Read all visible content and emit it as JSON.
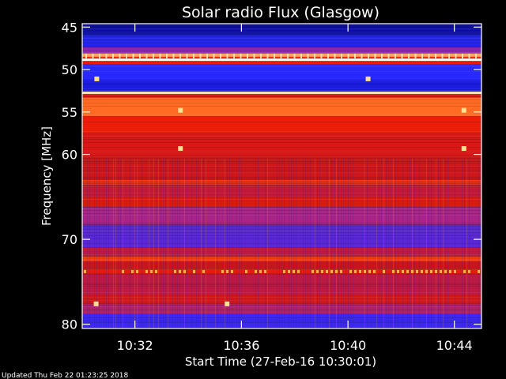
{
  "chart_data": {
    "type": "heatmap",
    "title": "Solar radio Flux (Glasgow)",
    "xlabel": "Start Time (27-Feb-16 10:30:01)",
    "ylabel": "Frequency [MHz]",
    "footer": "Updated Thu Feb 22 01:23:25 2018",
    "xlim": [
      10.5003,
      10.7503
    ],
    "ylim": [
      80.5,
      44.6
    ],
    "xticks": [
      {
        "label": "10:32",
        "value": 10.5333
      },
      {
        "label": "10:36",
        "value": 10.6
      },
      {
        "label": "10:40",
        "value": 10.6667
      },
      {
        "label": "10:44",
        "value": 10.7333
      }
    ],
    "yticks": [
      {
        "label": "45",
        "value": 45
      },
      {
        "label": "50",
        "value": 50
      },
      {
        "label": "55",
        "value": 55
      },
      {
        "label": "60",
        "value": 60
      },
      {
        "label": "70",
        "value": 70
      },
      {
        "label": "80",
        "value": 80
      }
    ],
    "frequency_bands": [
      {
        "from": 44.6,
        "to": 45.1,
        "level": 0.08
      },
      {
        "from": 45.1,
        "to": 46.0,
        "level": 0.1
      },
      {
        "from": 46.0,
        "to": 47.4,
        "level": 0.25
      },
      {
        "from": 47.4,
        "to": 48.1,
        "level": 0.38
      },
      {
        "from": 48.1,
        "to": 48.5,
        "level": 0.85
      },
      {
        "from": 48.5,
        "to": 48.7,
        "level": 0.65
      },
      {
        "from": 48.7,
        "to": 49.0,
        "level": 1.0
      },
      {
        "from": 49.0,
        "to": 49.4,
        "level": 0.6
      },
      {
        "from": 49.4,
        "to": 51.2,
        "level": 0.28
      },
      {
        "from": 51.2,
        "to": 52.6,
        "level": 0.18
      },
      {
        "from": 52.6,
        "to": 52.9,
        "level": 0.95
      },
      {
        "from": 52.9,
        "to": 53.3,
        "level": 0.55
      },
      {
        "from": 53.3,
        "to": 55.5,
        "level": 0.78
      },
      {
        "from": 55.5,
        "to": 57.5,
        "level": 0.62
      },
      {
        "from": 57.5,
        "to": 60.2,
        "level": 0.55
      },
      {
        "from": 60.2,
        "to": 63.0,
        "level": 0.52
      },
      {
        "from": 63.0,
        "to": 63.6,
        "level": 0.66
      },
      {
        "from": 63.6,
        "to": 65.0,
        "level": 0.48
      },
      {
        "from": 65.0,
        "to": 66.2,
        "level": 0.56
      },
      {
        "from": 66.2,
        "to": 68.3,
        "level": 0.42
      },
      {
        "from": 68.3,
        "to": 71.0,
        "level": 0.33
      },
      {
        "from": 71.0,
        "to": 72.0,
        "level": 0.47
      },
      {
        "from": 72.0,
        "to": 72.6,
        "level": 0.68
      },
      {
        "from": 72.6,
        "to": 73.5,
        "level": 0.5
      },
      {
        "from": 73.5,
        "to": 74.1,
        "level": 0.6
      },
      {
        "from": 74.1,
        "to": 76.5,
        "level": 0.47
      },
      {
        "from": 76.5,
        "to": 77.6,
        "level": 0.52
      },
      {
        "from": 77.6,
        "to": 78.8,
        "level": 0.44
      },
      {
        "from": 78.8,
        "to": 80.5,
        "level": 0.3
      }
    ],
    "features": [
      {
        "type": "bright-spot",
        "x": 10.5618,
        "f": 54.8
      },
      {
        "type": "bright-spot",
        "x": 10.5618,
        "f": 59.3
      },
      {
        "type": "bright-spot",
        "x": 10.7393,
        "f": 54.8
      },
      {
        "type": "bright-spot",
        "x": 10.7393,
        "f": 59.3
      },
      {
        "type": "bright-spot",
        "x": 10.5094,
        "f": 51.1
      },
      {
        "type": "bright-spot",
        "x": 10.6793,
        "f": 51.1
      },
      {
        "type": "bright-spot",
        "x": 10.509,
        "f": 77.6
      },
      {
        "type": "bright-spot",
        "x": 10.591,
        "f": 77.6
      }
    ]
  }
}
